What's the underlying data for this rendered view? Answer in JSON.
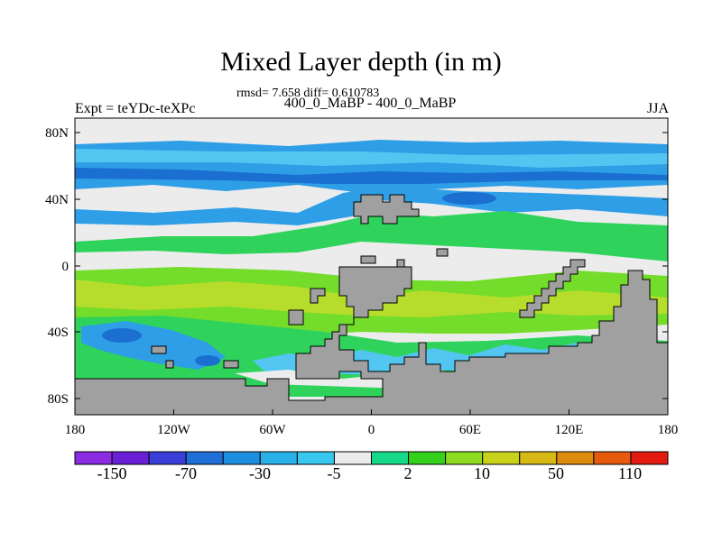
{
  "map": {
    "title": "Mixed Layer depth (in m)",
    "subtitle": "rmsd= 7.658 diff= 0.610783",
    "subtitle2": "400_0_MaBP - 400_0_MaBP",
    "left_label": "Expt = teYDc-teXPc",
    "right_label": "JJA",
    "lon_ticks": [
      "180",
      "120W",
      "60W",
      "0",
      "60E",
      "120E",
      "180"
    ],
    "lat_ticks": [
      "80N",
      "40N",
      "0",
      "40S",
      "80S"
    ]
  },
  "colorbar": {
    "labels": [
      "-150",
      "-70",
      "-30",
      "-5",
      "2",
      "10",
      "50",
      "110"
    ],
    "colors": [
      "#8b2be2",
      "#6a1fd6",
      "#3b3fd8",
      "#1f6fd6",
      "#1e8fe0",
      "#2ab0e8",
      "#38c8ee",
      "#ececec",
      "#17d98a",
      "#33d11c",
      "#8edc22",
      "#c8d21a",
      "#d8b814",
      "#dd8c10",
      "#e55a0c",
      "#e21a10"
    ]
  },
  "legend_colors": {
    "land": "#a0a0a0",
    "neutral": "#ececec",
    "deep_blue": "#1a6fd0",
    "mid_blue": "#2e9ee6",
    "light_blue": "#52c6f0",
    "green": "#2fd35c",
    "light_green": "#74dc2a",
    "yellow_green": "#b6dc2c"
  }
}
